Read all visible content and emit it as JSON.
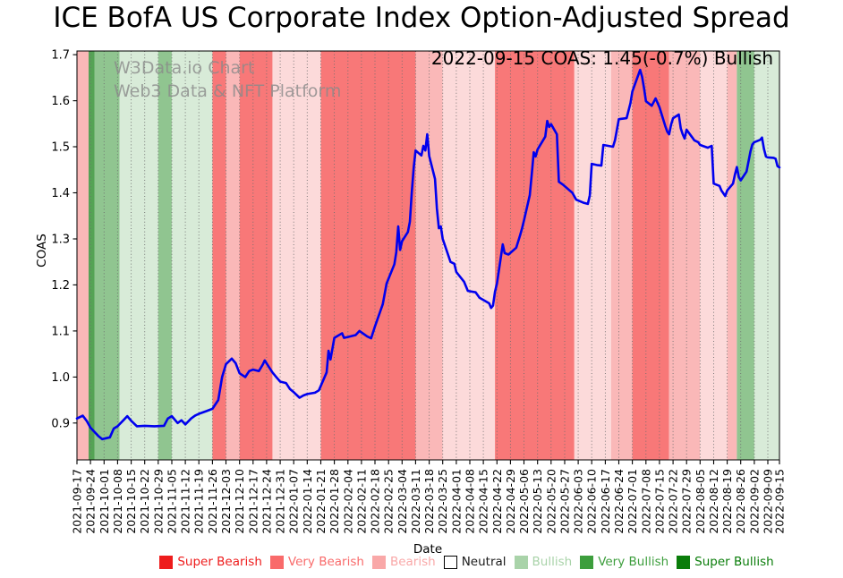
{
  "title": "ICE BofA US Corporate Index Option-Adjusted Spread",
  "watermark": {
    "line1": "W3Data.io Chart",
    "line2": "Web3 Data & NFT Platform"
  },
  "annotation": "2022-09-15 COAS: 1.45(-0.7%) Bullish",
  "axes": {
    "x_label": "Date",
    "y_label": "COAS",
    "y_ticks": [
      "0.9",
      "1.0",
      "1.1",
      "1.2",
      "1.3",
      "1.4",
      "1.5",
      "1.6",
      "1.7"
    ],
    "x_ticks": [
      "2021-09-17",
      "2021-09-24",
      "2021-10-01",
      "2021-10-08",
      "2021-10-15",
      "2021-10-22",
      "2021-10-29",
      "2021-11-05",
      "2021-11-12",
      "2021-11-19",
      "2021-11-26",
      "2021-12-03",
      "2021-12-10",
      "2021-12-17",
      "2021-12-24",
      "2021-12-31",
      "2022-01-07",
      "2022-01-14",
      "2022-01-21",
      "2022-01-28",
      "2022-02-04",
      "2022-02-11",
      "2022-02-18",
      "2022-02-25",
      "2022-03-04",
      "2022-03-11",
      "2022-03-18",
      "2022-03-25",
      "2022-04-01",
      "2022-04-08",
      "2022-04-15",
      "2022-04-22",
      "2022-04-29",
      "2022-05-06",
      "2022-05-13",
      "2022-05-20",
      "2022-05-27",
      "2022-06-03",
      "2022-06-10",
      "2022-06-17",
      "2022-06-24",
      "2022-07-01",
      "2022-07-08",
      "2022-07-15",
      "2022-07-22",
      "2022-07-29",
      "2022-08-05",
      "2022-08-12",
      "2022-08-19",
      "2022-08-26",
      "2022-09-02",
      "2022-09-09",
      "2022-09-15"
    ]
  },
  "legend": {
    "items": [
      {
        "label": "Super Bearish",
        "color": "#ee1c1c",
        "swatch": "#ee1c1c",
        "swatch_border": "#ee1c1c"
      },
      {
        "label": "Very Bearish",
        "color": "#f96b6b",
        "swatch": "#f96b6b",
        "swatch_border": "#f96b6b"
      },
      {
        "label": "Bearish",
        "color": "#f9a8a8",
        "swatch": "#f9a8a8",
        "swatch_border": "#f9a8a8"
      },
      {
        "label": "Neutral",
        "color": "#1a1a1a",
        "swatch": "#ffffff",
        "swatch_border": "#000000"
      },
      {
        "label": "Bullish",
        "color": "#a9d3a9",
        "swatch": "#a9d3a9",
        "swatch_border": "#a9d3a9"
      },
      {
        "label": "Very Bullish",
        "color": "#3d9e3d",
        "swatch": "#3d9e3d",
        "swatch_border": "#3d9e3d"
      },
      {
        "label": "Super Bullish",
        "color": "#0a7d0a",
        "swatch": "#0a7d0a",
        "swatch_border": "#0a7d0a"
      }
    ]
  },
  "chart_data": {
    "type": "line",
    "title": "ICE BofA US Corporate Index Option-Adjusted Spread",
    "xlabel": "Date",
    "ylabel": "COAS",
    "x_range": [
      "2021-09-17",
      "2022-09-15"
    ],
    "ylim": [
      0.82,
      1.708
    ],
    "grid": "vertical dotted weekly gridlines",
    "legend_position": "bottom",
    "line_color": "#0000ee",
    "band_palette": {
      "salmon": "#f87878",
      "pink": "#fab8b8",
      "pale_pink": "#fcdada",
      "pale_green": "#d8ebd8",
      "mid_green": "#90c590",
      "deep_green": "#55a355"
    },
    "shade_sentiment": {
      "salmon": "Very Bearish",
      "pink": "Bearish",
      "pale_pink": "Bearish",
      "pale_green": "Bullish",
      "mid_green": "Very Bullish",
      "deep_green": "Super Bullish"
    },
    "bands": [
      [
        "2021-09-17",
        "2021-09-23",
        "pink"
      ],
      [
        "2021-09-23",
        "2021-09-26",
        "deep_green"
      ],
      [
        "2021-09-26",
        "2021-10-09",
        "mid_green"
      ],
      [
        "2021-10-09",
        "2021-10-29",
        "pale_green"
      ],
      [
        "2021-10-29",
        "2021-11-05",
        "mid_green"
      ],
      [
        "2021-11-05",
        "2021-11-26",
        "pale_green"
      ],
      [
        "2021-11-26",
        "2021-12-03",
        "salmon"
      ],
      [
        "2021-12-03",
        "2021-12-10",
        "pink"
      ],
      [
        "2021-12-10",
        "2021-12-27",
        "salmon"
      ],
      [
        "2021-12-27",
        "2022-01-21",
        "pale_pink"
      ],
      [
        "2022-01-21",
        "2022-03-11",
        "salmon"
      ],
      [
        "2022-03-11",
        "2022-03-25",
        "pink"
      ],
      [
        "2022-03-25",
        "2022-04-21",
        "pale_pink"
      ],
      [
        "2022-04-21",
        "2022-06-01",
        "salmon"
      ],
      [
        "2022-06-01",
        "2022-06-20",
        "pale_pink"
      ],
      [
        "2022-06-20",
        "2022-07-01",
        "pink"
      ],
      [
        "2022-07-01",
        "2022-07-20",
        "salmon"
      ],
      [
        "2022-07-20",
        "2022-08-05",
        "pink"
      ],
      [
        "2022-08-05",
        "2022-08-19",
        "pale_pink"
      ],
      [
        "2022-08-19",
        "2022-08-24",
        "pink"
      ],
      [
        "2022-08-24",
        "2022-09-02",
        "mid_green"
      ],
      [
        "2022-09-02",
        "2022-09-15",
        "pale_green"
      ]
    ],
    "series": [
      {
        "name": "COAS",
        "points": [
          [
            "2021-09-17",
            0.91
          ],
          [
            "2021-09-20",
            0.916
          ],
          [
            "2021-09-22",
            0.905
          ],
          [
            "2021-09-24",
            0.89
          ],
          [
            "2021-09-28",
            0.872
          ],
          [
            "2021-09-30",
            0.865
          ],
          [
            "2021-10-04",
            0.869
          ],
          [
            "2021-10-06",
            0.888
          ],
          [
            "2021-10-08",
            0.893
          ],
          [
            "2021-10-11",
            0.906
          ],
          [
            "2021-10-13",
            0.915
          ],
          [
            "2021-10-15",
            0.905
          ],
          [
            "2021-10-18",
            0.893
          ],
          [
            "2021-10-22",
            0.894
          ],
          [
            "2021-10-27",
            0.893
          ],
          [
            "2021-11-01",
            0.894
          ],
          [
            "2021-11-03",
            0.91
          ],
          [
            "2021-11-05",
            0.915
          ],
          [
            "2021-11-08",
            0.9
          ],
          [
            "2021-11-10",
            0.906
          ],
          [
            "2021-11-12",
            0.897
          ],
          [
            "2021-11-15",
            0.91
          ],
          [
            "2021-11-17",
            0.916
          ],
          [
            "2021-11-19",
            0.92
          ],
          [
            "2021-11-23",
            0.926
          ],
          [
            "2021-11-26",
            0.931
          ],
          [
            "2021-11-29",
            0.95
          ],
          [
            "2021-12-01",
            1.0
          ],
          [
            "2021-12-03",
            1.028
          ],
          [
            "2021-12-06",
            1.04
          ],
          [
            "2021-12-08",
            1.03
          ],
          [
            "2021-12-10",
            1.008
          ],
          [
            "2021-12-13",
            1.0
          ],
          [
            "2021-12-15",
            1.013
          ],
          [
            "2021-12-17",
            1.016
          ],
          [
            "2021-12-20",
            1.013
          ],
          [
            "2021-12-22",
            1.027
          ],
          [
            "2021-12-23",
            1.036
          ],
          [
            "2021-12-27",
            1.01
          ],
          [
            "2021-12-29",
            1.0
          ],
          [
            "2021-12-31",
            0.99
          ],
          [
            "2022-01-03",
            0.987
          ],
          [
            "2022-01-05",
            0.974
          ],
          [
            "2022-01-07",
            0.967
          ],
          [
            "2022-01-10",
            0.955
          ],
          [
            "2022-01-12",
            0.96
          ],
          [
            "2022-01-14",
            0.963
          ],
          [
            "2022-01-18",
            0.966
          ],
          [
            "2022-01-20",
            0.971
          ],
          [
            "2022-01-24",
            1.01
          ],
          [
            "2022-01-25",
            1.057
          ],
          [
            "2022-01-26",
            1.038
          ],
          [
            "2022-01-27",
            1.062
          ],
          [
            "2022-01-28",
            1.085
          ],
          [
            "2022-02-01",
            1.095
          ],
          [
            "2022-02-02",
            1.085
          ],
          [
            "2022-02-04",
            1.087
          ],
          [
            "2022-02-08",
            1.091
          ],
          [
            "2022-02-10",
            1.1
          ],
          [
            "2022-02-14",
            1.088
          ],
          [
            "2022-02-16",
            1.084
          ],
          [
            "2022-02-18",
            1.11
          ],
          [
            "2022-02-22",
            1.158
          ],
          [
            "2022-02-24",
            1.203
          ],
          [
            "2022-02-28",
            1.245
          ],
          [
            "2022-03-01",
            1.271
          ],
          [
            "2022-03-02",
            1.327
          ],
          [
            "2022-03-03",
            1.276
          ],
          [
            "2022-03-04",
            1.295
          ],
          [
            "2022-03-07",
            1.315
          ],
          [
            "2022-03-08",
            1.337
          ],
          [
            "2022-03-09",
            1.4
          ],
          [
            "2022-03-10",
            1.455
          ],
          [
            "2022-03-11",
            1.492
          ],
          [
            "2022-03-14",
            1.481
          ],
          [
            "2022-03-15",
            1.502
          ],
          [
            "2022-03-16",
            1.492
          ],
          [
            "2022-03-17",
            1.527
          ],
          [
            "2022-03-18",
            1.48
          ],
          [
            "2022-03-21",
            1.43
          ],
          [
            "2022-03-22",
            1.366
          ],
          [
            "2022-03-23",
            1.323
          ],
          [
            "2022-03-24",
            1.327
          ],
          [
            "2022-03-25",
            1.3
          ],
          [
            "2022-03-29",
            1.25
          ],
          [
            "2022-03-31",
            1.246
          ],
          [
            "2022-04-01",
            1.228
          ],
          [
            "2022-04-05",
            1.207
          ],
          [
            "2022-04-07",
            1.187
          ],
          [
            "2022-04-11",
            1.184
          ],
          [
            "2022-04-13",
            1.172
          ],
          [
            "2022-04-18",
            1.16
          ],
          [
            "2022-04-19",
            1.15
          ],
          [
            "2022-04-20",
            1.155
          ],
          [
            "2022-04-21",
            1.185
          ],
          [
            "2022-04-22",
            1.203
          ],
          [
            "2022-04-25",
            1.288
          ],
          [
            "2022-04-26",
            1.269
          ],
          [
            "2022-04-28",
            1.266
          ],
          [
            "2022-05-02",
            1.281
          ],
          [
            "2022-05-04",
            1.308
          ],
          [
            "2022-05-05",
            1.323
          ],
          [
            "2022-05-06",
            1.34
          ],
          [
            "2022-05-09",
            1.395
          ],
          [
            "2022-05-10",
            1.44
          ],
          [
            "2022-05-11",
            1.488
          ],
          [
            "2022-05-12",
            1.479
          ],
          [
            "2022-05-13",
            1.494
          ],
          [
            "2022-05-17",
            1.522
          ],
          [
            "2022-05-18",
            1.556
          ],
          [
            "2022-05-19",
            1.543
          ],
          [
            "2022-05-20",
            1.549
          ],
          [
            "2022-05-23",
            1.527
          ],
          [
            "2022-05-24",
            1.424
          ],
          [
            "2022-05-26",
            1.418
          ],
          [
            "2022-05-31",
            1.4
          ],
          [
            "2022-06-02",
            1.385
          ],
          [
            "2022-06-06",
            1.378
          ],
          [
            "2022-06-08",
            1.376
          ],
          [
            "2022-06-09",
            1.395
          ],
          [
            "2022-06-10",
            1.463
          ],
          [
            "2022-06-13",
            1.46
          ],
          [
            "2022-06-15",
            1.459
          ],
          [
            "2022-06-16",
            1.504
          ],
          [
            "2022-06-21",
            1.5
          ],
          [
            "2022-06-22",
            1.514
          ],
          [
            "2022-06-24",
            1.56
          ],
          [
            "2022-06-28",
            1.562
          ],
          [
            "2022-06-30",
            1.595
          ],
          [
            "2022-07-01",
            1.62
          ],
          [
            "2022-07-05",
            1.667
          ],
          [
            "2022-07-06",
            1.652
          ],
          [
            "2022-07-07",
            1.628
          ],
          [
            "2022-07-08",
            1.599
          ],
          [
            "2022-07-11",
            1.589
          ],
          [
            "2022-07-13",
            1.605
          ],
          [
            "2022-07-15",
            1.586
          ],
          [
            "2022-07-18",
            1.545
          ],
          [
            "2022-07-19",
            1.533
          ],
          [
            "2022-07-20",
            1.527
          ],
          [
            "2022-07-21",
            1.548
          ],
          [
            "2022-07-22",
            1.562
          ],
          [
            "2022-07-25",
            1.57
          ],
          [
            "2022-07-26",
            1.54
          ],
          [
            "2022-07-27",
            1.527
          ],
          [
            "2022-07-28",
            1.518
          ],
          [
            "2022-07-29",
            1.537
          ],
          [
            "2022-08-01",
            1.52
          ],
          [
            "2022-08-02",
            1.514
          ],
          [
            "2022-08-04",
            1.51
          ],
          [
            "2022-08-05",
            1.504
          ],
          [
            "2022-08-09",
            1.498
          ],
          [
            "2022-08-10",
            1.5
          ],
          [
            "2022-08-11",
            1.502
          ],
          [
            "2022-08-12",
            1.42
          ],
          [
            "2022-08-15",
            1.415
          ],
          [
            "2022-08-16",
            1.405
          ],
          [
            "2022-08-18",
            1.393
          ],
          [
            "2022-08-19",
            1.405
          ],
          [
            "2022-08-22",
            1.42
          ],
          [
            "2022-08-23",
            1.44
          ],
          [
            "2022-08-24",
            1.456
          ],
          [
            "2022-08-25",
            1.434
          ],
          [
            "2022-08-26",
            1.427
          ],
          [
            "2022-08-29",
            1.446
          ],
          [
            "2022-08-31",
            1.49
          ],
          [
            "2022-09-01",
            1.505
          ],
          [
            "2022-09-02",
            1.51
          ],
          [
            "2022-09-05",
            1.515
          ],
          [
            "2022-09-06",
            1.52
          ],
          [
            "2022-09-07",
            1.495
          ],
          [
            "2022-09-08",
            1.479
          ],
          [
            "2022-09-09",
            1.477
          ],
          [
            "2022-09-12",
            1.476
          ],
          [
            "2022-09-13",
            1.474
          ],
          [
            "2022-09-14",
            1.458
          ],
          [
            "2022-09-15",
            1.455
          ]
        ]
      }
    ]
  }
}
